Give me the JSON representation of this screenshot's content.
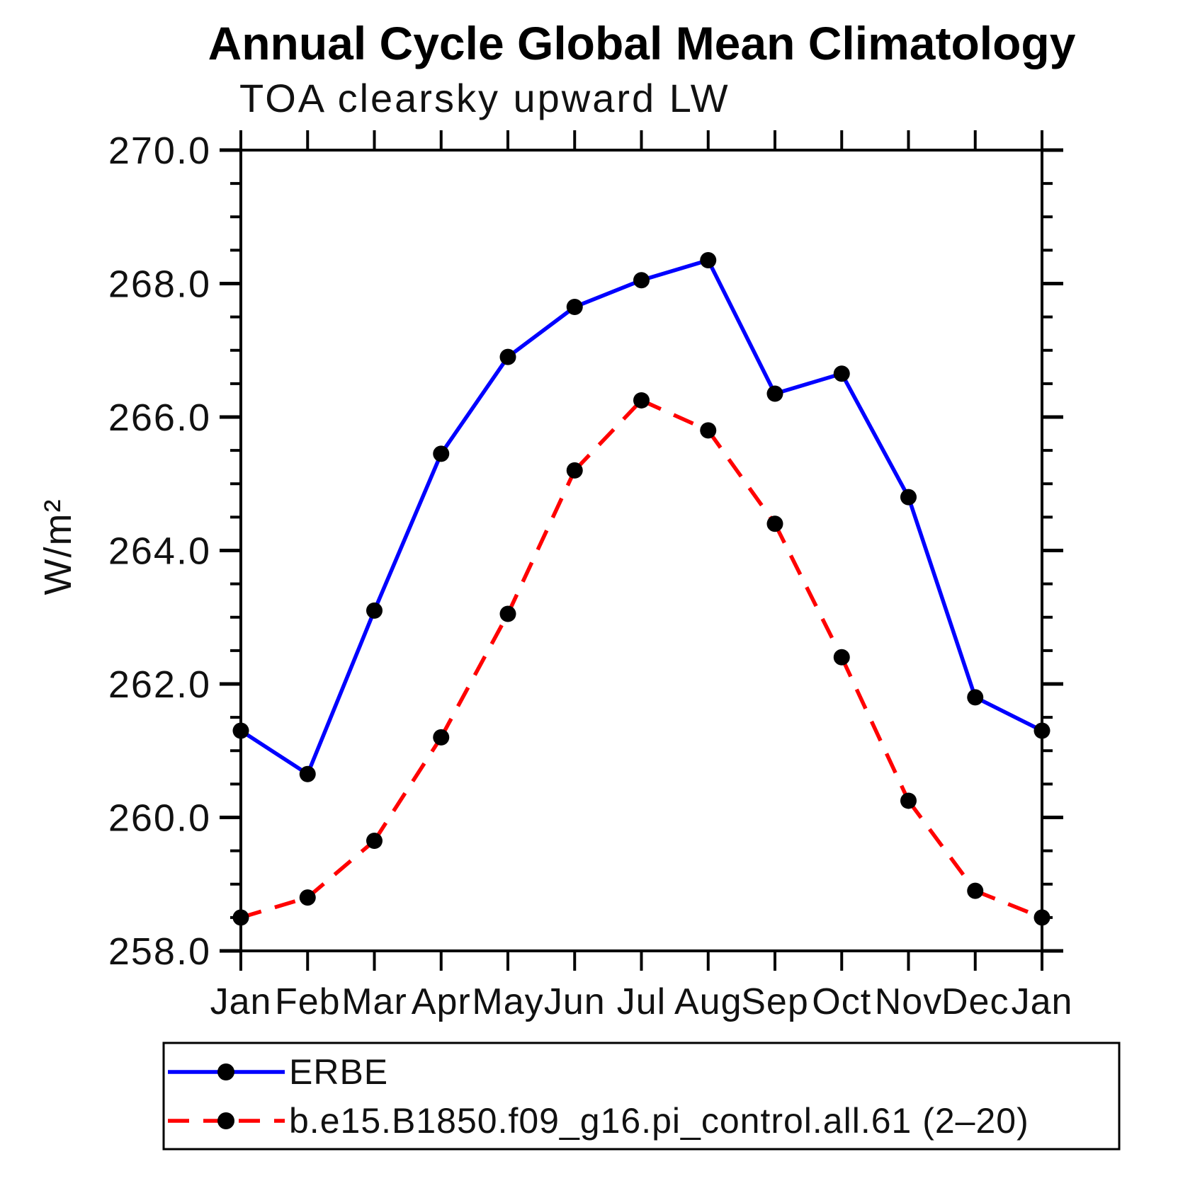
{
  "title": "Annual Cycle Global Mean Climatology",
  "subtitle": "TOA clearsky upward LW",
  "ylabel": "W/m²",
  "colors": {
    "erbe_line": "#0000ff",
    "model_line": "#ff0000",
    "marker": "#000000",
    "axis": "#000000",
    "background": "#ffffff"
  },
  "chart_data": {
    "type": "line",
    "categories": [
      "Jan",
      "Feb",
      "Mar",
      "Apr",
      "May",
      "Jun",
      "Jul",
      "Aug",
      "Sep",
      "Oct",
      "Nov",
      "Dec",
      "Jan"
    ],
    "series": [
      {
        "name": "ERBE",
        "style": "solid",
        "color": "#0000ff",
        "marker": "filled-circle",
        "values": [
          261.3,
          260.65,
          263.1,
          265.45,
          266.9,
          267.65,
          268.05,
          268.35,
          266.35,
          266.65,
          264.8,
          261.8,
          261.3
        ]
      },
      {
        "name": "b.e15.B1850.f09_g16.pi_control.all.61 (2–20)",
        "style": "dashed",
        "color": "#ff0000",
        "marker": "filled-circle",
        "values": [
          258.5,
          258.8,
          259.65,
          261.2,
          263.05,
          265.2,
          266.25,
          265.8,
          264.4,
          262.4,
          260.25,
          258.9,
          258.5
        ]
      }
    ],
    "ylim": [
      258.0,
      270.0
    ],
    "y_major_step": 2.0,
    "y_minor_step": 0.5,
    "y_tick_labels": [
      "258.0",
      "260.0",
      "262.0",
      "264.0",
      "266.0",
      "268.0",
      "270.0"
    ],
    "grid": "off",
    "legend_position": "bottom-left"
  },
  "legend": {
    "entries": [
      {
        "label": "ERBE"
      },
      {
        "label": "b.e15.B1850.f09_g16.pi_control.all.61 (2–20)"
      }
    ]
  }
}
